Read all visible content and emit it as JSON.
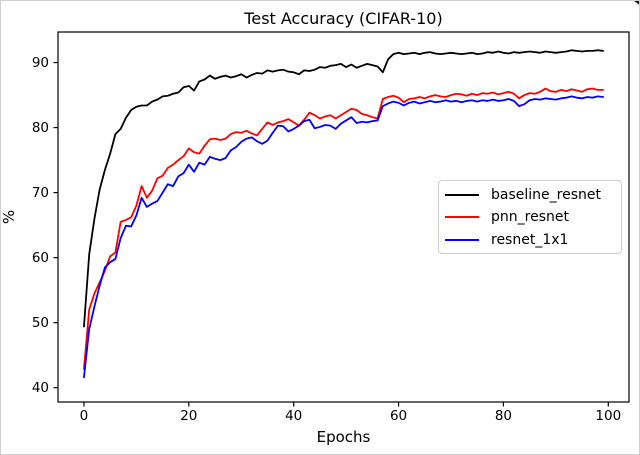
{
  "figure": {
    "title": "Test Accuracy (CIFAR-10)",
    "xlabel": "Epochs",
    "ylabel": "%"
  },
  "chart_data": {
    "type": "line",
    "title": "Test Accuracy (CIFAR-10)",
    "xlabel": "Epochs",
    "ylabel": "%",
    "x_range": [
      0,
      99
    ],
    "xlim": [
      -4.95,
      103.95
    ],
    "ylim": [
      37.8,
      94.7
    ],
    "xticks": [
      0,
      20,
      40,
      60,
      80,
      100
    ],
    "yticks": [
      40,
      50,
      60,
      70,
      80,
      90
    ],
    "grid": false,
    "legend_position": "center right",
    "line_width": 1.8,
    "series": [
      {
        "name": "baseline_resnet",
        "color": "#000000",
        "values": [
          49.4,
          60.5,
          66.0,
          70.5,
          73.5,
          76.0,
          79.0,
          79.8,
          81.5,
          82.7,
          83.2,
          83.4,
          83.4,
          84.0,
          84.3,
          84.8,
          84.9,
          85.2,
          85.4,
          86.2,
          86.4,
          85.7,
          87.1,
          87.4,
          88.0,
          87.5,
          87.8,
          88.0,
          87.7,
          87.9,
          88.2,
          87.7,
          88.1,
          88.4,
          88.3,
          88.8,
          88.6,
          88.8,
          88.9,
          88.6,
          88.5,
          88.2,
          88.8,
          88.7,
          88.9,
          89.3,
          89.2,
          89.5,
          89.6,
          89.8,
          89.3,
          89.7,
          89.2,
          89.5,
          89.8,
          89.6,
          89.4,
          88.5,
          90.5,
          91.3,
          91.5,
          91.3,
          91.4,
          91.5,
          91.3,
          91.5,
          91.6,
          91.4,
          91.3,
          91.4,
          91.5,
          91.4,
          91.3,
          91.4,
          91.5,
          91.3,
          91.4,
          91.6,
          91.5,
          91.7,
          91.5,
          91.4,
          91.6,
          91.5,
          91.6,
          91.7,
          91.6,
          91.5,
          91.7,
          91.6,
          91.5,
          91.6,
          91.7,
          91.9,
          91.8,
          91.7,
          91.8,
          91.8,
          91.9,
          91.8
        ]
      },
      {
        "name": "pnn_resnet",
        "color": "#ff0000",
        "values": [
          42.9,
          52.0,
          54.5,
          56.2,
          58.0,
          60.2,
          60.8,
          65.5,
          65.8,
          66.2,
          68.0,
          71.0,
          69.2,
          70.3,
          72.2,
          72.6,
          73.8,
          74.3,
          75.0,
          75.6,
          76.8,
          76.2,
          76.0,
          77.2,
          78.2,
          78.3,
          78.1,
          78.3,
          79.0,
          79.3,
          79.2,
          79.5,
          79.1,
          78.8,
          79.8,
          80.8,
          80.4,
          80.8,
          81.0,
          81.3,
          80.8,
          80.3,
          81.2,
          82.3,
          81.9,
          81.4,
          81.7,
          81.9,
          81.4,
          81.9,
          82.4,
          82.9,
          82.7,
          82.1,
          81.9,
          81.6,
          81.4,
          84.4,
          84.7,
          84.9,
          84.6,
          83.9,
          84.4,
          84.5,
          84.7,
          84.5,
          84.8,
          85.0,
          84.8,
          84.7,
          85.0,
          85.2,
          85.1,
          84.9,
          85.2,
          85.0,
          85.3,
          85.2,
          85.4,
          85.1,
          85.3,
          85.5,
          85.2,
          84.5,
          85.0,
          85.3,
          85.2,
          85.5,
          86.0,
          85.6,
          85.5,
          85.8,
          85.6,
          85.9,
          85.7,
          85.5,
          85.9,
          86.0,
          85.8,
          85.8
        ]
      },
      {
        "name": "resnet_1x1",
        "color": "#0000ff",
        "values": [
          41.6,
          49.0,
          52.5,
          55.7,
          58.5,
          59.3,
          59.8,
          63.0,
          64.9,
          64.8,
          66.5,
          69.2,
          67.8,
          68.3,
          68.7,
          70.0,
          71.3,
          71.0,
          72.5,
          73.0,
          74.3,
          73.2,
          74.6,
          74.3,
          75.5,
          75.2,
          75.0,
          75.3,
          76.5,
          77.0,
          77.8,
          78.3,
          78.5,
          77.9,
          77.5,
          78.0,
          79.2,
          80.3,
          80.2,
          79.4,
          79.8,
          80.3,
          81.0,
          81.2,
          79.9,
          80.1,
          80.4,
          80.3,
          79.8,
          80.6,
          81.1,
          81.6,
          80.7,
          80.9,
          80.8,
          81.0,
          81.1,
          83.3,
          83.7,
          84.0,
          83.8,
          83.4,
          83.8,
          84.0,
          83.7,
          83.9,
          84.1,
          83.9,
          84.0,
          84.2,
          84.0,
          84.1,
          83.9,
          84.1,
          84.2,
          84.0,
          84.2,
          84.1,
          84.3,
          84.1,
          84.2,
          84.4,
          84.1,
          83.3,
          83.6,
          84.2,
          84.4,
          84.3,
          84.5,
          84.4,
          84.3,
          84.5,
          84.6,
          84.8,
          84.6,
          84.5,
          84.7,
          84.6,
          84.8,
          84.7
        ]
      }
    ]
  }
}
